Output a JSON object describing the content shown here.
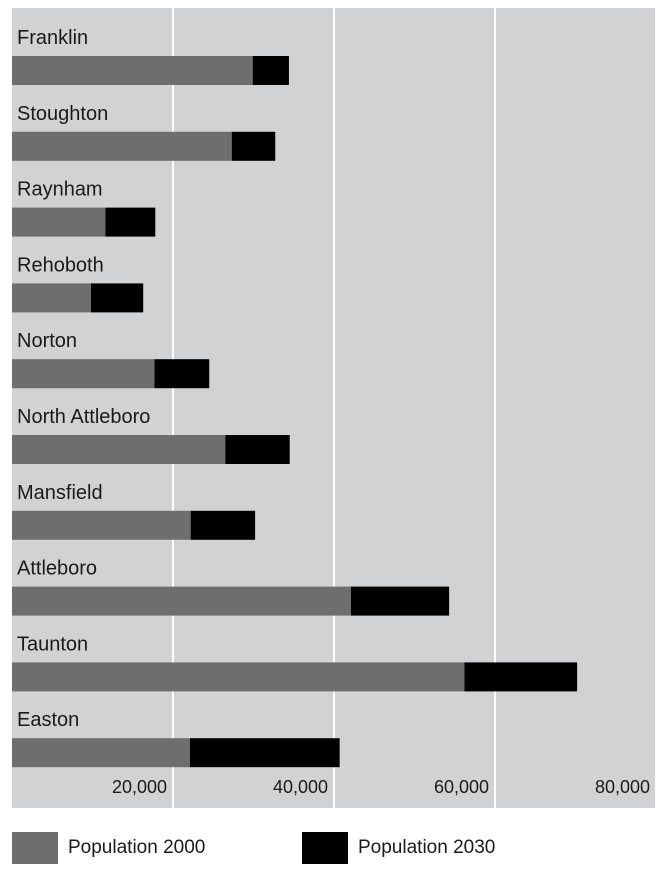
{
  "chart_data": {
    "type": "bar",
    "orientation": "horizontal",
    "stacked": true,
    "categories": [
      "Franklin",
      "Stoughton",
      "Raynham",
      "Rehoboth",
      "Norton",
      "North Attleboro",
      "Mansfield",
      "Attleboro",
      "Taunton",
      "Easton"
    ],
    "series": [
      {
        "name": "Population 2000",
        "color": "#6d6e70",
        "values": [
          29900,
          27300,
          11600,
          9800,
          17700,
          26500,
          22200,
          42100,
          56200,
          22100
        ]
      },
      {
        "name": "Population 2030",
        "color": "#000000",
        "values": [
          4500,
          5400,
          6200,
          6500,
          6800,
          8000,
          8000,
          12200,
          14000,
          18600
        ]
      }
    ],
    "xlim": [
      0,
      80000
    ],
    "xticks": [
      20000,
      40000,
      60000,
      80000
    ],
    "xtick_labels": [
      "20,000",
      "40,000",
      "60,000",
      "80,000"
    ],
    "grid": true,
    "background": "#d1d2d4",
    "legend_position": "bottom-left"
  }
}
